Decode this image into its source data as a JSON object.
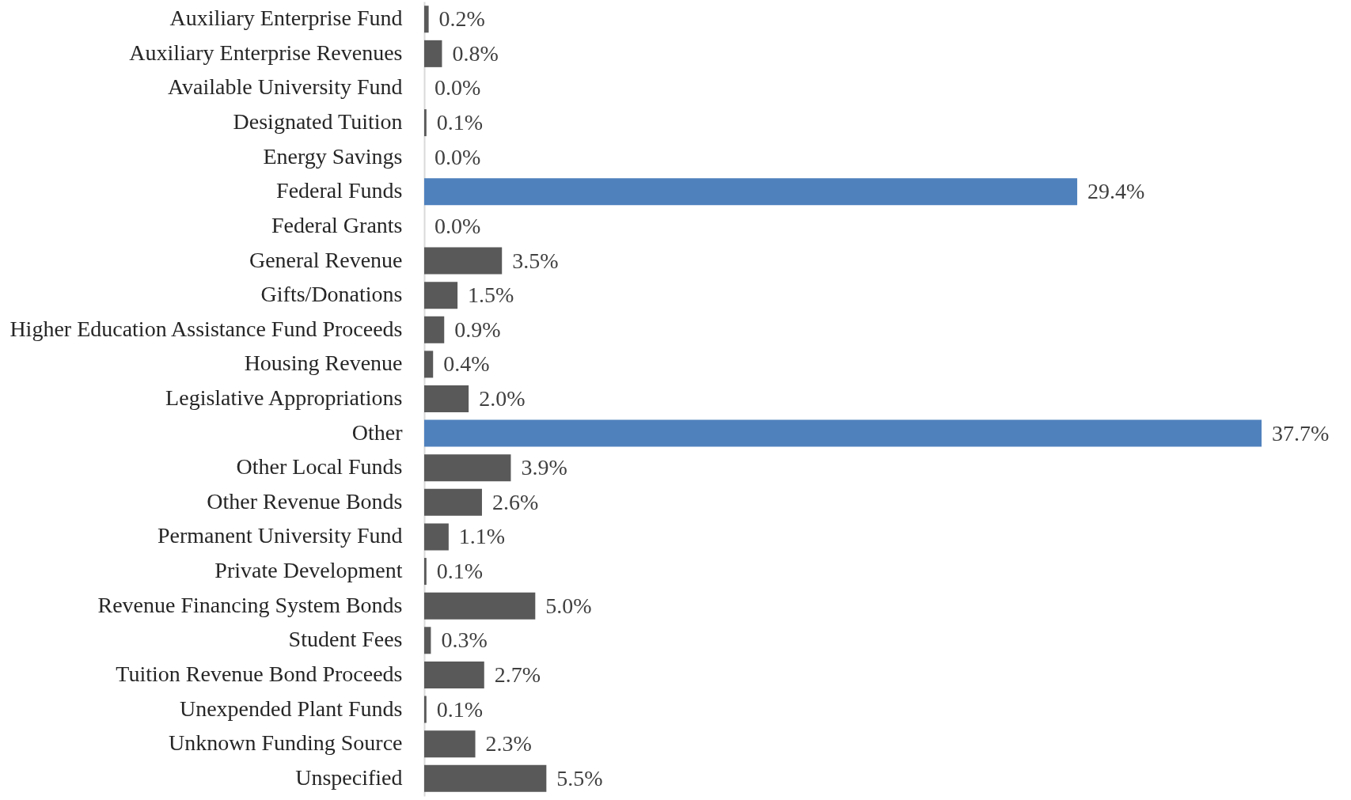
{
  "chart_data": {
    "type": "bar",
    "orientation": "horizontal",
    "categories": [
      "Auxiliary Enterprise Fund",
      "Auxiliary Enterprise Revenues",
      "Available University Fund",
      "Designated Tuition",
      "Energy Savings",
      "Federal Funds",
      "Federal Grants",
      "General Revenue",
      "Gifts/Donations",
      "Higher Education Assistance Fund Proceeds",
      "Housing Revenue",
      "Legislative Appropriations",
      "Other",
      "Other Local Funds",
      "Other Revenue Bonds",
      "Permanent University Fund",
      "Private Development",
      "Revenue Financing System Bonds",
      "Student Fees",
      "Tuition Revenue Bond Proceeds",
      "Unexpended Plant Funds",
      "Unknown Funding Source",
      "Unspecified"
    ],
    "values": [
      0.2,
      0.8,
      0.0,
      0.1,
      0.0,
      29.4,
      0.0,
      3.5,
      1.5,
      0.9,
      0.4,
      2.0,
      37.7,
      3.9,
      2.6,
      1.1,
      0.1,
      5.0,
      0.3,
      2.7,
      0.1,
      2.3,
      5.5
    ],
    "colors": [
      "#595959",
      "#595959",
      "#595959",
      "#595959",
      "#595959",
      "#4f81bd",
      "#595959",
      "#595959",
      "#595959",
      "#595959",
      "#595959",
      "#595959",
      "#4f81bd",
      "#595959",
      "#595959",
      "#595959",
      "#595959",
      "#595959",
      "#595959",
      "#595959",
      "#595959",
      "#595959",
      "#595959"
    ],
    "value_labels": [
      "0.2%",
      "0.8%",
      "0.0%",
      "0.1%",
      "0.0%",
      "29.4%",
      "0.0%",
      "3.5%",
      "1.5%",
      "0.9%",
      "0.4%",
      "2.0%",
      "37.7%",
      "3.9%",
      "2.6%",
      "1.1%",
      "0.1%",
      "5.0%",
      "0.3%",
      "2.7%",
      "0.1%",
      "2.3%",
      "5.5%"
    ]
  }
}
